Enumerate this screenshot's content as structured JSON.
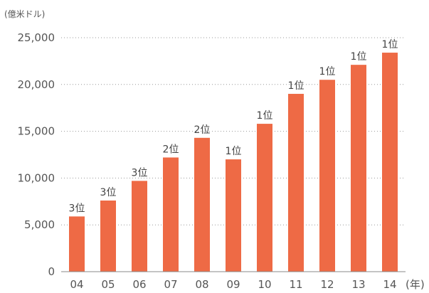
{
  "chart_data": {
    "type": "bar",
    "title": "",
    "ylabel": "(億米ドル)",
    "xlabel": "(年)",
    "ylim": [
      0,
      25000
    ],
    "yticks": [
      0,
      5000,
      10000,
      15000,
      20000,
      25000
    ],
    "ytick_labels": [
      "0",
      "5,000",
      "10,000",
      "15,000",
      "20,000",
      "25,000"
    ],
    "categories": [
      "04",
      "05",
      "06",
      "07",
      "08",
      "09",
      "10",
      "11",
      "12",
      "13",
      "14"
    ],
    "values": [
      5900,
      7600,
      9700,
      12200,
      14300,
      12000,
      15800,
      19000,
      20500,
      22100,
      23400
    ],
    "data_labels": [
      "3位",
      "3位",
      "3位",
      "2位",
      "2位",
      "1位",
      "1位",
      "1位",
      "1位",
      "1位",
      "1位"
    ],
    "grid": true,
    "legend": "none",
    "colors": {
      "bar": "#ee6a45",
      "grid": "#9a9a9a",
      "text": "#555555"
    }
  }
}
